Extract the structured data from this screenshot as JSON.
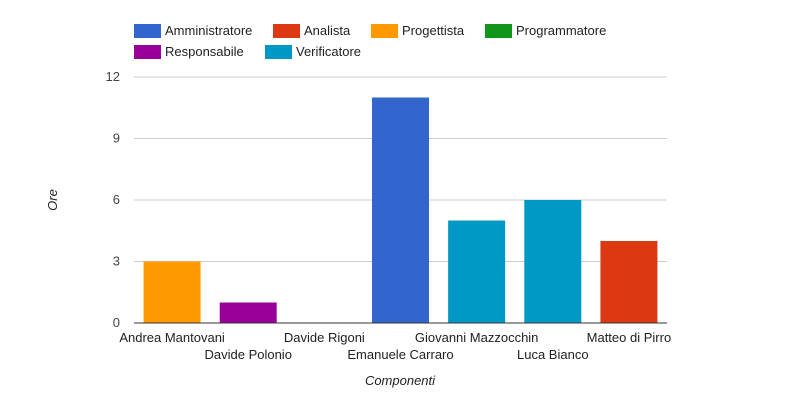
{
  "chart_data": {
    "type": "bar",
    "title": "",
    "xlabel": "Componenti",
    "ylabel": "Ore",
    "ylim": [
      0,
      12
    ],
    "yticks": [
      0,
      3,
      6,
      9,
      12
    ],
    "grid": true,
    "legend_position": "top",
    "legend": [
      {
        "name": "Amministratore",
        "color": "#3366cc"
      },
      {
        "name": "Analista",
        "color": "#dc3912"
      },
      {
        "name": "Progettista",
        "color": "#ff9900"
      },
      {
        "name": "Programmatore",
        "color": "#109618"
      },
      {
        "name": "Responsabile",
        "color": "#990099"
      },
      {
        "name": "Verificatore",
        "color": "#0099c6"
      }
    ],
    "categories": [
      "Andrea Mantovani",
      "Davide Polonio",
      "Davide Rigoni",
      "Emanuele Carraro",
      "Giovanni Mazzocchin",
      "Luca Bianco",
      "Matteo di Pirro"
    ],
    "values": [
      3,
      1,
      0,
      11,
      5,
      6,
      4
    ],
    "bar_roles": [
      "Progettista",
      "Responsabile",
      "Verificatore",
      "Amministratore",
      "Verificatore",
      "Verificatore",
      "Analista"
    ]
  }
}
